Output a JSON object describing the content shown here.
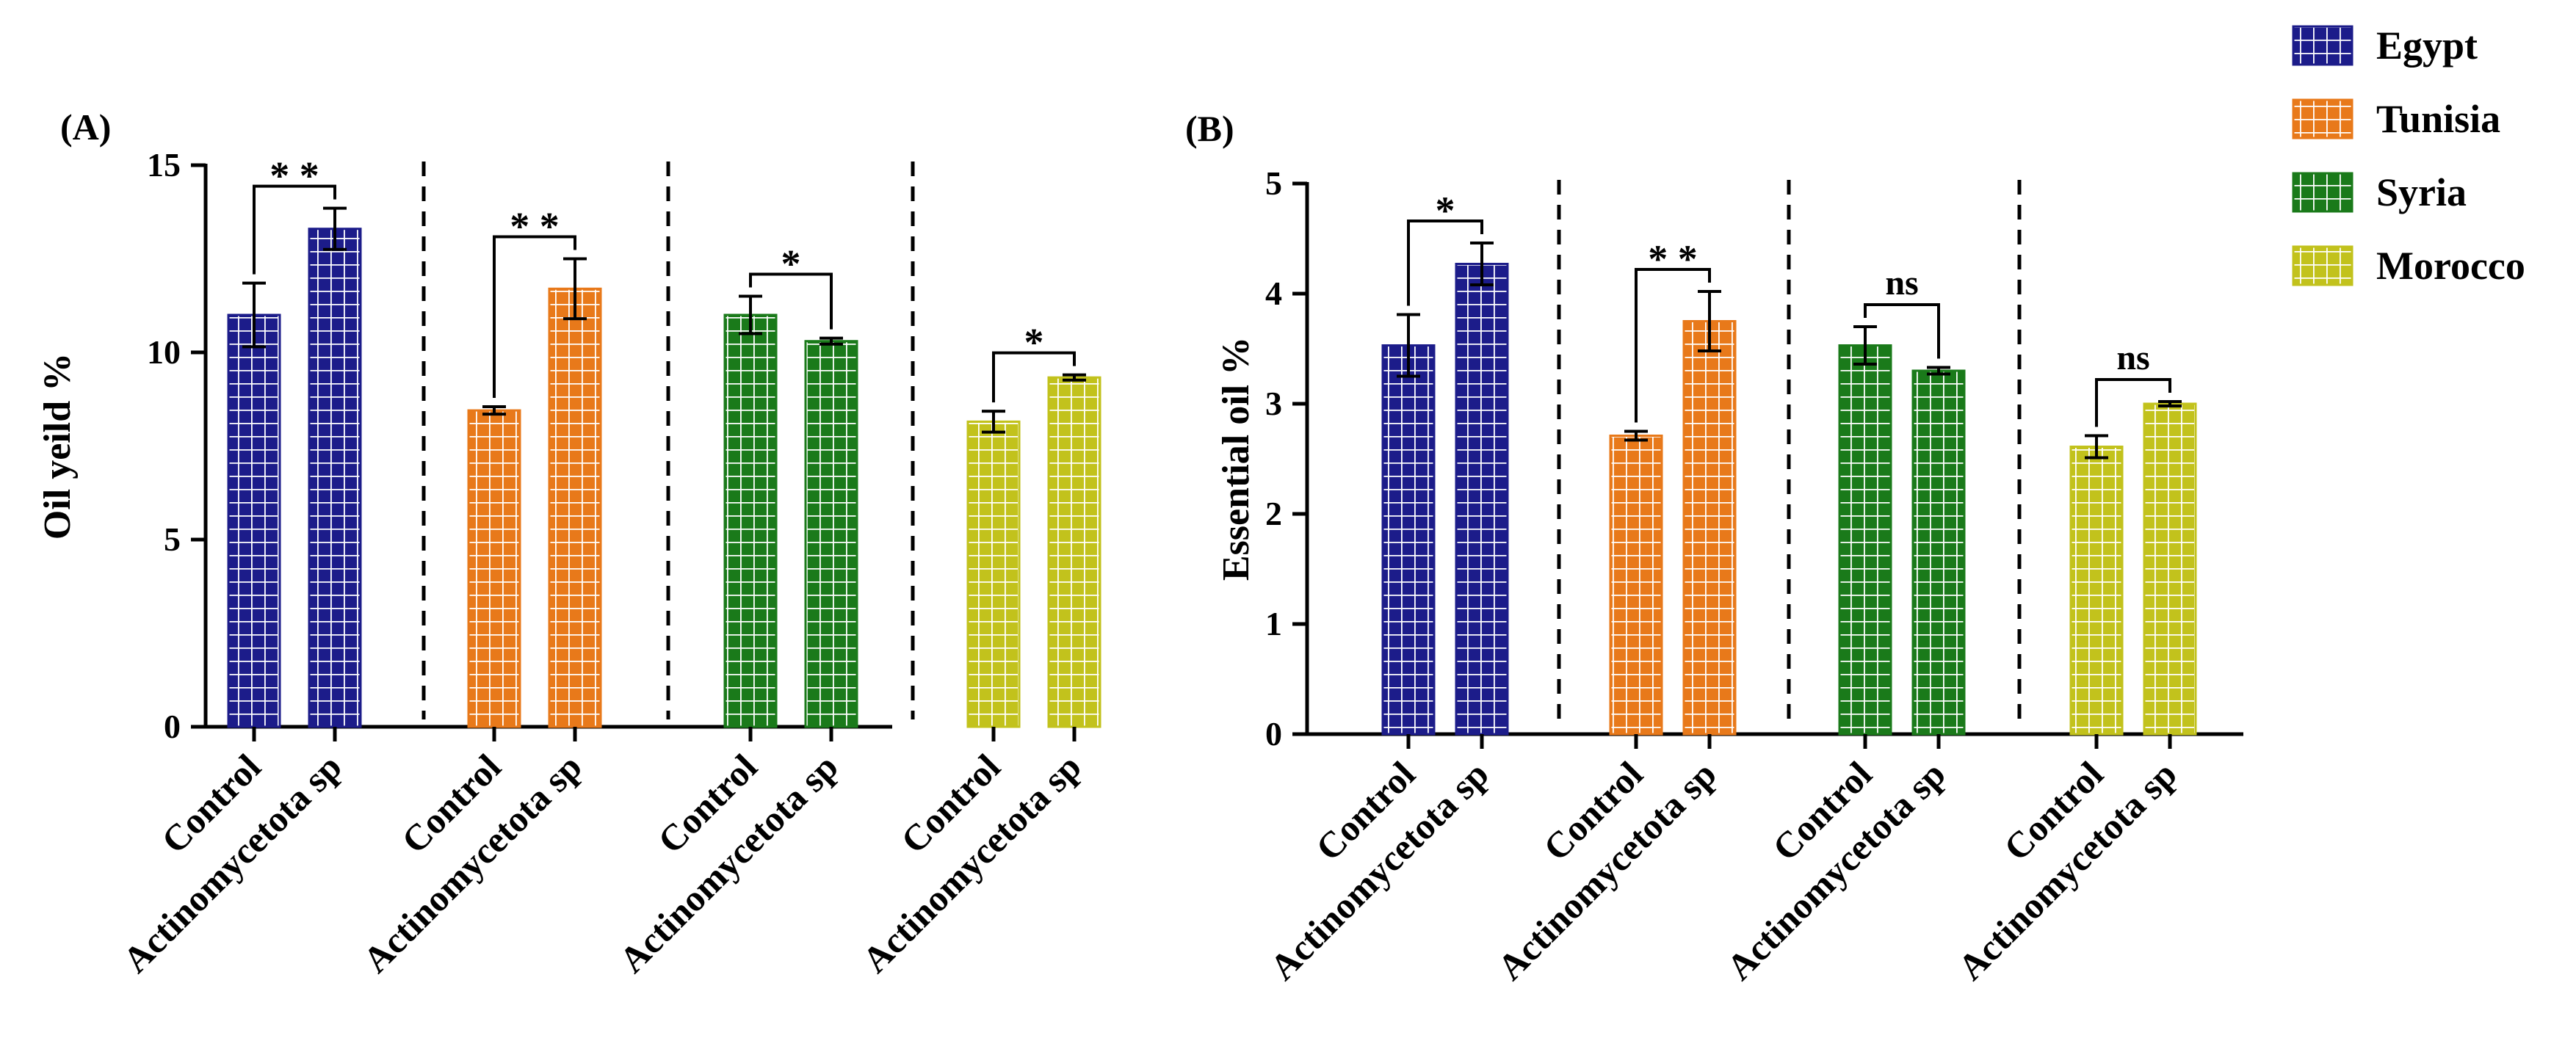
{
  "colors": {
    "Egypt": "#1c1c8a",
    "Tunisia": "#e8791a",
    "Syria": "#1a7a1a",
    "Morocco": "#c2c21c",
    "hatch": "#ffffff",
    "axis": "#000000"
  },
  "legend": {
    "items": [
      {
        "label": "Egypt",
        "key": "Egypt"
      },
      {
        "label": "Tunisia",
        "key": "Tunisia"
      },
      {
        "label": "Syria",
        "key": "Syria"
      },
      {
        "label": "Morocco",
        "key": "Morocco"
      }
    ]
  },
  "chart_data": [
    {
      "type": "bar",
      "panel_label": "(A)",
      "ylabel": "Oil yeild %",
      "ylim": [
        0,
        15
      ],
      "yticks": [
        "0",
        "5",
        "10",
        "15"
      ],
      "categories": [
        "Control",
        "Actinomycetota sp"
      ],
      "groups": [
        {
          "country": "Egypt",
          "values": [
            11.0,
            13.3
          ],
          "errors": [
            0.85,
            0.55
          ],
          "sig": "* *"
        },
        {
          "country": "Tunisia",
          "values": [
            8.45,
            11.7
          ],
          "errors": [
            0.1,
            0.8
          ],
          "sig": "* *"
        },
        {
          "country": "Syria",
          "values": [
            11.0,
            10.3
          ],
          "errors": [
            0.5,
            0.08
          ],
          "sig": "*"
        },
        {
          "country": "Morocco",
          "values": [
            8.15,
            9.33
          ],
          "errors": [
            0.28,
            0.07
          ],
          "sig": "*"
        }
      ]
    },
    {
      "type": "bar",
      "panel_label": "(B)",
      "ylabel": "Essential oil %",
      "ylim": [
        0,
        5
      ],
      "yticks": [
        "0",
        "1",
        "2",
        "3",
        "4",
        "5"
      ],
      "categories": [
        "Control",
        "Actinomycetota sp"
      ],
      "groups": [
        {
          "country": "Egypt",
          "values": [
            3.53,
            4.27
          ],
          "errors": [
            0.28,
            0.19
          ],
          "sig": "*"
        },
        {
          "country": "Tunisia",
          "values": [
            2.71,
            3.75
          ],
          "errors": [
            0.04,
            0.27
          ],
          "sig": "* *"
        },
        {
          "country": "Syria",
          "values": [
            3.53,
            3.3
          ],
          "errors": [
            0.17,
            0.03
          ],
          "sig": "ns"
        },
        {
          "country": "Morocco",
          "values": [
            2.61,
            3.0
          ],
          "errors": [
            0.1,
            0.02
          ],
          "sig": "ns"
        }
      ]
    }
  ]
}
